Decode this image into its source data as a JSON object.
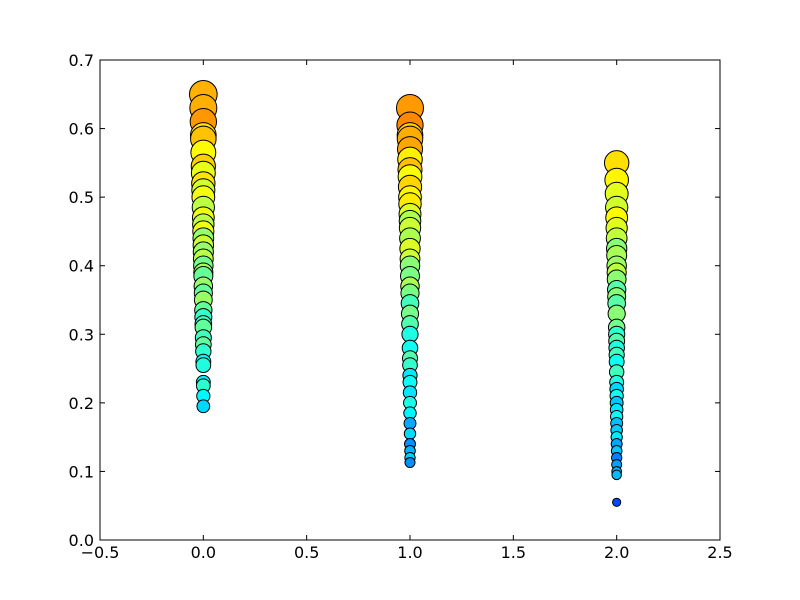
{
  "chart_data": {
    "type": "scatter",
    "title": "",
    "xlabel": "",
    "ylabel": "",
    "xlim": [
      -0.5,
      2.5
    ],
    "ylim": [
      0.0,
      0.7
    ],
    "grid": false,
    "xticks": [
      -0.5,
      0.0,
      0.5,
      1.0,
      1.5,
      2.0,
      2.5
    ],
    "xtick_labels": [
      "−0.5",
      "0.0",
      "0.5",
      "1.0",
      "1.5",
      "2.0",
      "2.5"
    ],
    "yticks": [
      0.0,
      0.1,
      0.2,
      0.3,
      0.4,
      0.5,
      0.6,
      0.7
    ],
    "ytick_labels": [
      "0.0",
      "0.1",
      "0.2",
      "0.3",
      "0.4",
      "0.5",
      "0.6",
      "0.7"
    ],
    "colormap": "jet",
    "color_encodes": "y-value (normalized)",
    "size_encodes": "y-value",
    "series": [
      {
        "x": 0.0,
        "y": [
          0.195,
          0.21,
          0.225,
          0.23,
          0.255,
          0.26,
          0.275,
          0.285,
          0.295,
          0.31,
          0.315,
          0.325,
          0.335,
          0.35,
          0.36,
          0.37,
          0.385,
          0.39,
          0.4,
          0.41,
          0.42,
          0.43,
          0.44,
          0.45,
          0.46,
          0.47,
          0.485,
          0.5,
          0.51,
          0.52,
          0.535,
          0.545,
          0.565,
          0.585,
          0.59,
          0.61,
          0.63,
          0.65
        ]
      },
      {
        "x": 1.0,
        "y": [
          0.113,
          0.12,
          0.13,
          0.14,
          0.155,
          0.17,
          0.185,
          0.2,
          0.215,
          0.23,
          0.24,
          0.255,
          0.265,
          0.28,
          0.3,
          0.315,
          0.33,
          0.345,
          0.36,
          0.37,
          0.385,
          0.4,
          0.41,
          0.425,
          0.44,
          0.455,
          0.465,
          0.475,
          0.49,
          0.5,
          0.515,
          0.53,
          0.54,
          0.555,
          0.57,
          0.585,
          0.59,
          0.605,
          0.63
        ]
      },
      {
        "x": 2.0,
        "y": [
          0.055,
          0.095,
          0.1,
          0.11,
          0.12,
          0.13,
          0.14,
          0.15,
          0.16,
          0.17,
          0.18,
          0.19,
          0.2,
          0.21,
          0.22,
          0.23,
          0.245,
          0.26,
          0.27,
          0.28,
          0.29,
          0.3,
          0.31,
          0.33,
          0.345,
          0.355,
          0.365,
          0.38,
          0.39,
          0.4,
          0.415,
          0.425,
          0.44,
          0.455,
          0.47,
          0.485,
          0.505,
          0.525,
          0.55
        ]
      }
    ]
  }
}
